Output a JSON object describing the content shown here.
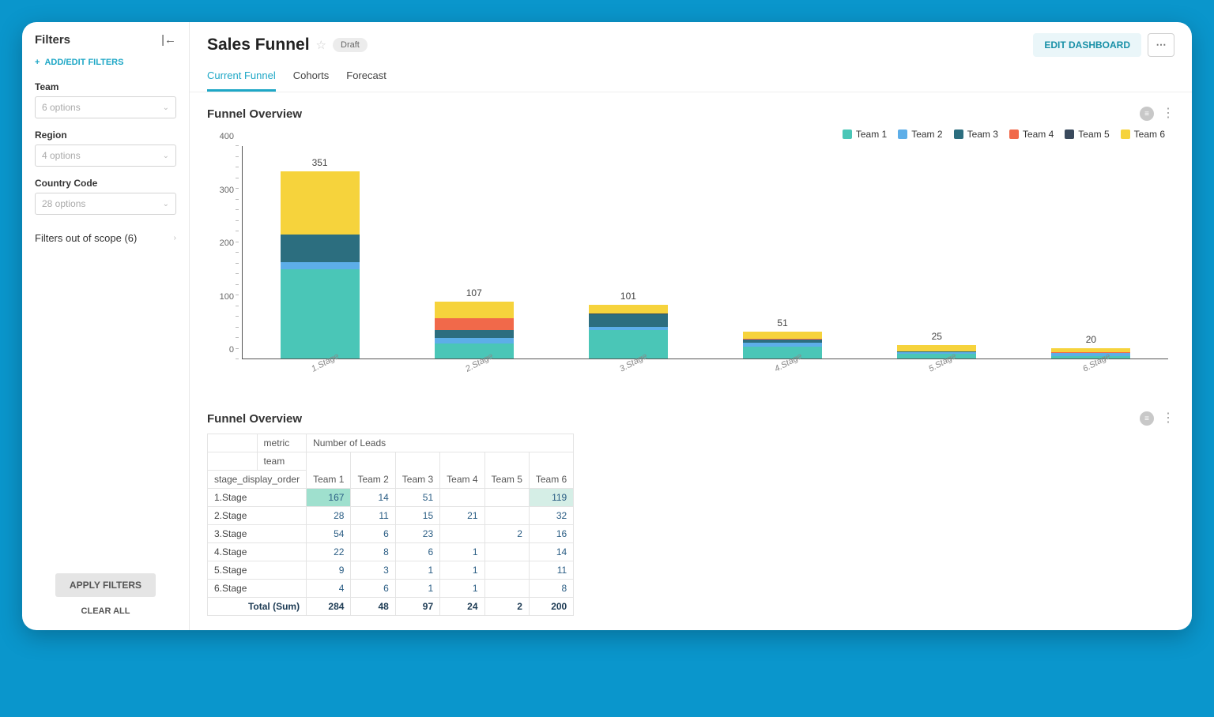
{
  "sidebar": {
    "title": "Filters",
    "add_edit": "ADD/EDIT FILTERS",
    "filters": [
      {
        "label": "Team",
        "placeholder": "6 options"
      },
      {
        "label": "Region",
        "placeholder": "4 options"
      },
      {
        "label": "Country Code",
        "placeholder": "28 options"
      }
    ],
    "out_of_scope": "Filters out of scope (6)",
    "apply": "APPLY FILTERS",
    "clear": "CLEAR ALL"
  },
  "header": {
    "title": "Sales Funnel",
    "badge": "Draft",
    "edit": "EDIT DASHBOARD"
  },
  "tabs": [
    {
      "label": "Current Funnel",
      "active": true
    },
    {
      "label": "Cohorts",
      "active": false
    },
    {
      "label": "Forecast",
      "active": false
    }
  ],
  "chart": {
    "title": "Funnel Overview",
    "type": "stacked-bar",
    "categories": [
      "1.Stage",
      "2.Stage",
      "3.Stage",
      "4.Stage",
      "5.Stage",
      "6.Stage"
    ],
    "series": [
      {
        "name": "Team 1",
        "color": "#4ac6b7",
        "values": [
          167,
          28,
          54,
          22,
          9,
          4
        ]
      },
      {
        "name": "Team 2",
        "color": "#5daee8",
        "values": [
          14,
          11,
          6,
          8,
          3,
          6
        ]
      },
      {
        "name": "Team 3",
        "color": "#2c6e7f",
        "values": [
          51,
          15,
          23,
          6,
          1,
          1
        ]
      },
      {
        "name": "Team 4",
        "color": "#f1694a",
        "values": [
          0,
          21,
          0,
          1,
          1,
          1
        ]
      },
      {
        "name": "Team 5",
        "color": "#3a4a5d",
        "values": [
          0,
          0,
          2,
          0,
          0,
          0
        ]
      },
      {
        "name": "Team 6",
        "color": "#f6d33c",
        "values": [
          119,
          32,
          16,
          14,
          11,
          8
        ]
      }
    ],
    "totals": [
      351,
      107,
      101,
      51,
      25,
      20
    ],
    "ymax": 400,
    "ytick_step": 100,
    "background_color": "#ffffff",
    "axis_color": "#555555",
    "label_fontsize": 11
  },
  "table": {
    "title": "Funnel Overview",
    "metric_label": "metric",
    "metric_value": "Number of Leads",
    "team_label": "team",
    "dim_label": "stage_display_order",
    "columns": [
      "Team 1",
      "Team 2",
      "Team 3",
      "Team 4",
      "Team 5",
      "Team 6"
    ],
    "rows": [
      {
        "label": "1.Stage",
        "cells": [
          "167",
          "14",
          "51",
          "",
          "",
          "119"
        ],
        "hl": [
          0,
          5
        ]
      },
      {
        "label": "2.Stage",
        "cells": [
          "28",
          "11",
          "15",
          "21",
          "",
          "32"
        ],
        "hl": []
      },
      {
        "label": "3.Stage",
        "cells": [
          "54",
          "6",
          "23",
          "",
          "2",
          "16"
        ],
        "hl": []
      },
      {
        "label": "4.Stage",
        "cells": [
          "22",
          "8",
          "6",
          "1",
          "",
          "14"
        ],
        "hl": []
      },
      {
        "label": "5.Stage",
        "cells": [
          "9",
          "3",
          "1",
          "1",
          "",
          "11"
        ],
        "hl": []
      },
      {
        "label": "6.Stage",
        "cells": [
          "4",
          "6",
          "1",
          "1",
          "",
          "8"
        ],
        "hl": []
      }
    ],
    "total_label": "Total (Sum)",
    "totals": [
      "284",
      "48",
      "97",
      "24",
      "2",
      "200"
    ],
    "highlight_color": "#9fe0ce",
    "highlight_color_soft": "#d5eee6"
  }
}
